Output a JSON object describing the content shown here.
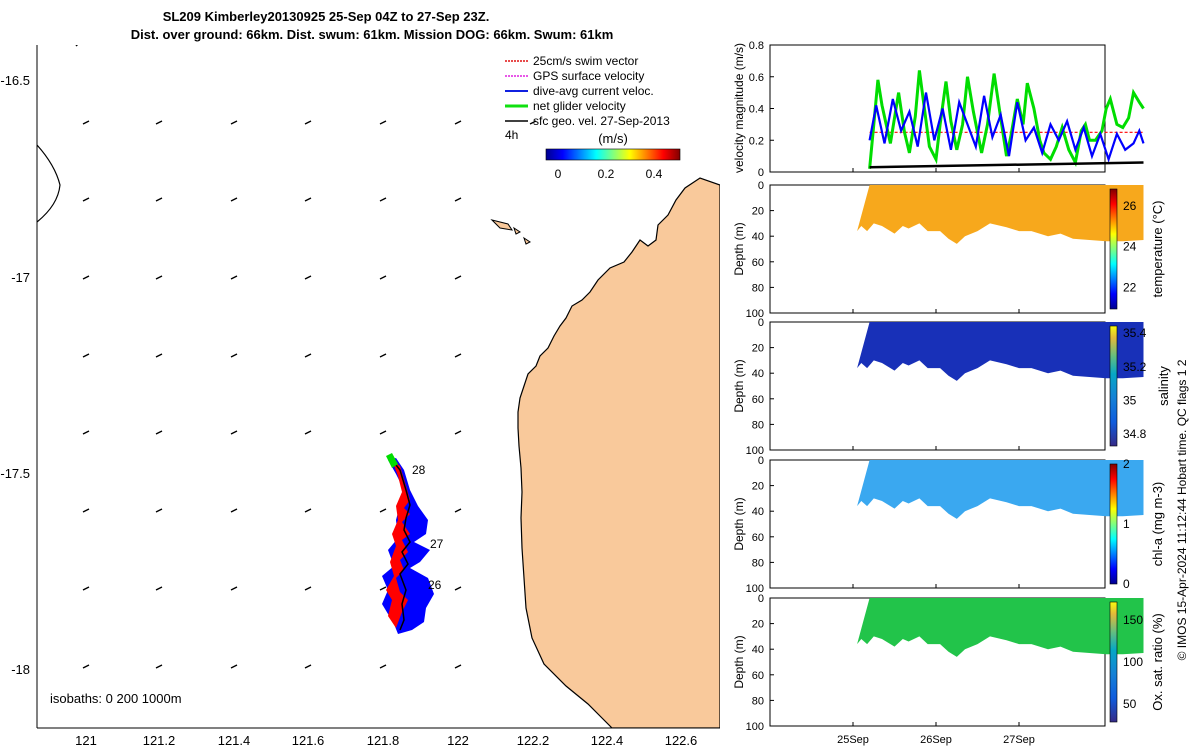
{
  "title": {
    "line1": "SL209 Kimberley20130925 25-Sep 04Z to 27-Sep 23Z.",
    "line2": "Dist. over ground: 66km. Dist. swum: 61km. Mission DOG: 66km. Swum: 61km"
  },
  "map": {
    "lat_ticks": [
      "-16.5",
      "-17",
      "-17.5",
      "-18"
    ],
    "lon_ticks": [
      "121",
      "121.2",
      "121.4",
      "121.6",
      "121.8",
      "122",
      "122.2",
      "122.4",
      "122.6"
    ],
    "xlim": [
      120.88,
      122.7
    ],
    "ylim": [
      -18.18,
      -16.41
    ],
    "legend": [
      {
        "label": "25cm/s swim vector",
        "color": "#e01010"
      },
      {
        "label": "GPS surface velocity",
        "color": "#e020e0"
      },
      {
        "label": "dive-avg current veloc.",
        "color": "#1020e0"
      },
      {
        "label": "net glider velocity",
        "color": "#10e010"
      },
      {
        "label": "sfc geo. vel. 27-Sep-2013",
        "color": "#000000"
      }
    ],
    "legend_extra": "4h",
    "colorbar_label": "(m/s)",
    "colorbar_ticks": [
      "0",
      "0.2",
      "0.4"
    ],
    "isobaths_label": "isobaths: 0   200  1000m",
    "day_labels": [
      "28",
      "27",
      "26"
    ],
    "land_color": "#f9c99b",
    "track_colors": {
      "swim": "#ff0000",
      "current": "#0000ff",
      "net": "#00dd00"
    }
  },
  "timeseries": {
    "x_ticks": [
      "25Sep",
      "26Sep",
      "27Sep"
    ],
    "x_range_days": [
      0.0,
      4.0
    ],
    "vel_panel": {
      "ylabel": "velocity magnitude (m/s)",
      "ylim": [
        0,
        0.8
      ],
      "yticks": [
        "0",
        "0.2",
        "0.4",
        "0.6",
        "0.8"
      ]
    },
    "depth_ylabel": "Depth (m)",
    "depth_ticks": [
      "0",
      "20",
      "40",
      "60",
      "80",
      "100"
    ],
    "panels": [
      {
        "label": "temperature (°C)",
        "ticks": [
          "22",
          "24",
          "26"
        ],
        "fill": "#f7a81c"
      },
      {
        "label": "salinity",
        "ticks": [
          "34.8",
          "35",
          "35.2",
          "35.4"
        ],
        "fill": "#1830b8"
      },
      {
        "label": "chl-a (mg m-3)",
        "ticks": [
          "0",
          "1",
          "2"
        ],
        "fill": "#3aa8f0"
      },
      {
        "label": "Ox. sat. ratio (%)",
        "ticks": [
          "50",
          "100",
          "150"
        ],
        "fill": "#22c44a"
      }
    ]
  },
  "side_note": "© IMOS 15-Apr-2024 11:12:44 Hobart time. QC flags 1  2",
  "chart_data": [
    {
      "type": "line",
      "title": "",
      "xlabel": "",
      "ylabel": "velocity magnitude (m/s)",
      "ylim": [
        0,
        0.8
      ],
      "x_ticks": [
        "25Sep",
        "26Sep",
        "27Sep"
      ],
      "series": [
        {
          "color": "#00dd00",
          "x": [
            0.2,
            0.25,
            0.3,
            0.35,
            0.4,
            0.45,
            0.55,
            0.62,
            0.68,
            0.75,
            0.8,
            0.86,
            0.92,
            1.0,
            1.05,
            1.12,
            1.18,
            1.25,
            1.32,
            1.38,
            1.45,
            1.55,
            1.62,
            1.7,
            1.78,
            1.85,
            1.9,
            1.98,
            2.05,
            2.1,
            2.18,
            2.25,
            2.3,
            2.38,
            2.45,
            2.52,
            2.6,
            2.68,
            2.75,
            2.8,
            2.85,
            2.92,
            3.0,
            3.05,
            3.1,
            3.18,
            3.25,
            3.32,
            3.38,
            3.45,
            3.5
          ],
          "values": [
            0.02,
            0.3,
            0.58,
            0.42,
            0.3,
            0.18,
            0.5,
            0.25,
            0.12,
            0.35,
            0.64,
            0.4,
            0.16,
            0.08,
            0.3,
            0.57,
            0.32,
            0.14,
            0.3,
            0.6,
            0.38,
            0.12,
            0.3,
            0.62,
            0.34,
            0.1,
            0.22,
            0.46,
            0.3,
            0.56,
            0.4,
            0.2,
            0.12,
            0.08,
            0.16,
            0.28,
            0.14,
            0.06,
            0.26,
            0.3,
            0.2,
            0.2,
            0.26,
            0.4,
            0.46,
            0.3,
            0.28,
            0.34,
            0.5,
            0.44,
            0.4
          ]
        },
        {
          "color": "#0000ff",
          "x": [
            0.2,
            0.28,
            0.38,
            0.48,
            0.58,
            0.68,
            0.78,
            0.88,
            0.98,
            1.08,
            1.18,
            1.28,
            1.38,
            1.48,
            1.58,
            1.68,
            1.78,
            1.88,
            1.98,
            2.08,
            2.18,
            2.28,
            2.38,
            2.48,
            2.58,
            2.68,
            2.78,
            2.88,
            2.98,
            3.08,
            3.18,
            3.28,
            3.38,
            3.45,
            3.5
          ],
          "values": [
            0.2,
            0.42,
            0.18,
            0.46,
            0.26,
            0.38,
            0.16,
            0.5,
            0.2,
            0.4,
            0.14,
            0.44,
            0.3,
            0.16,
            0.48,
            0.22,
            0.36,
            0.1,
            0.44,
            0.2,
            0.28,
            0.12,
            0.3,
            0.2,
            0.32,
            0.14,
            0.28,
            0.1,
            0.24,
            0.08,
            0.24,
            0.14,
            0.18,
            0.26,
            0.18
          ]
        },
        {
          "color": "#000000",
          "x": [
            0.2,
            3.5
          ],
          "values": [
            0.03,
            0.06
          ]
        },
        {
          "color": "#ff0000",
          "x": [
            0.2,
            3.5
          ],
          "values": [
            0.25,
            0.25
          ]
        }
      ]
    }
  ]
}
